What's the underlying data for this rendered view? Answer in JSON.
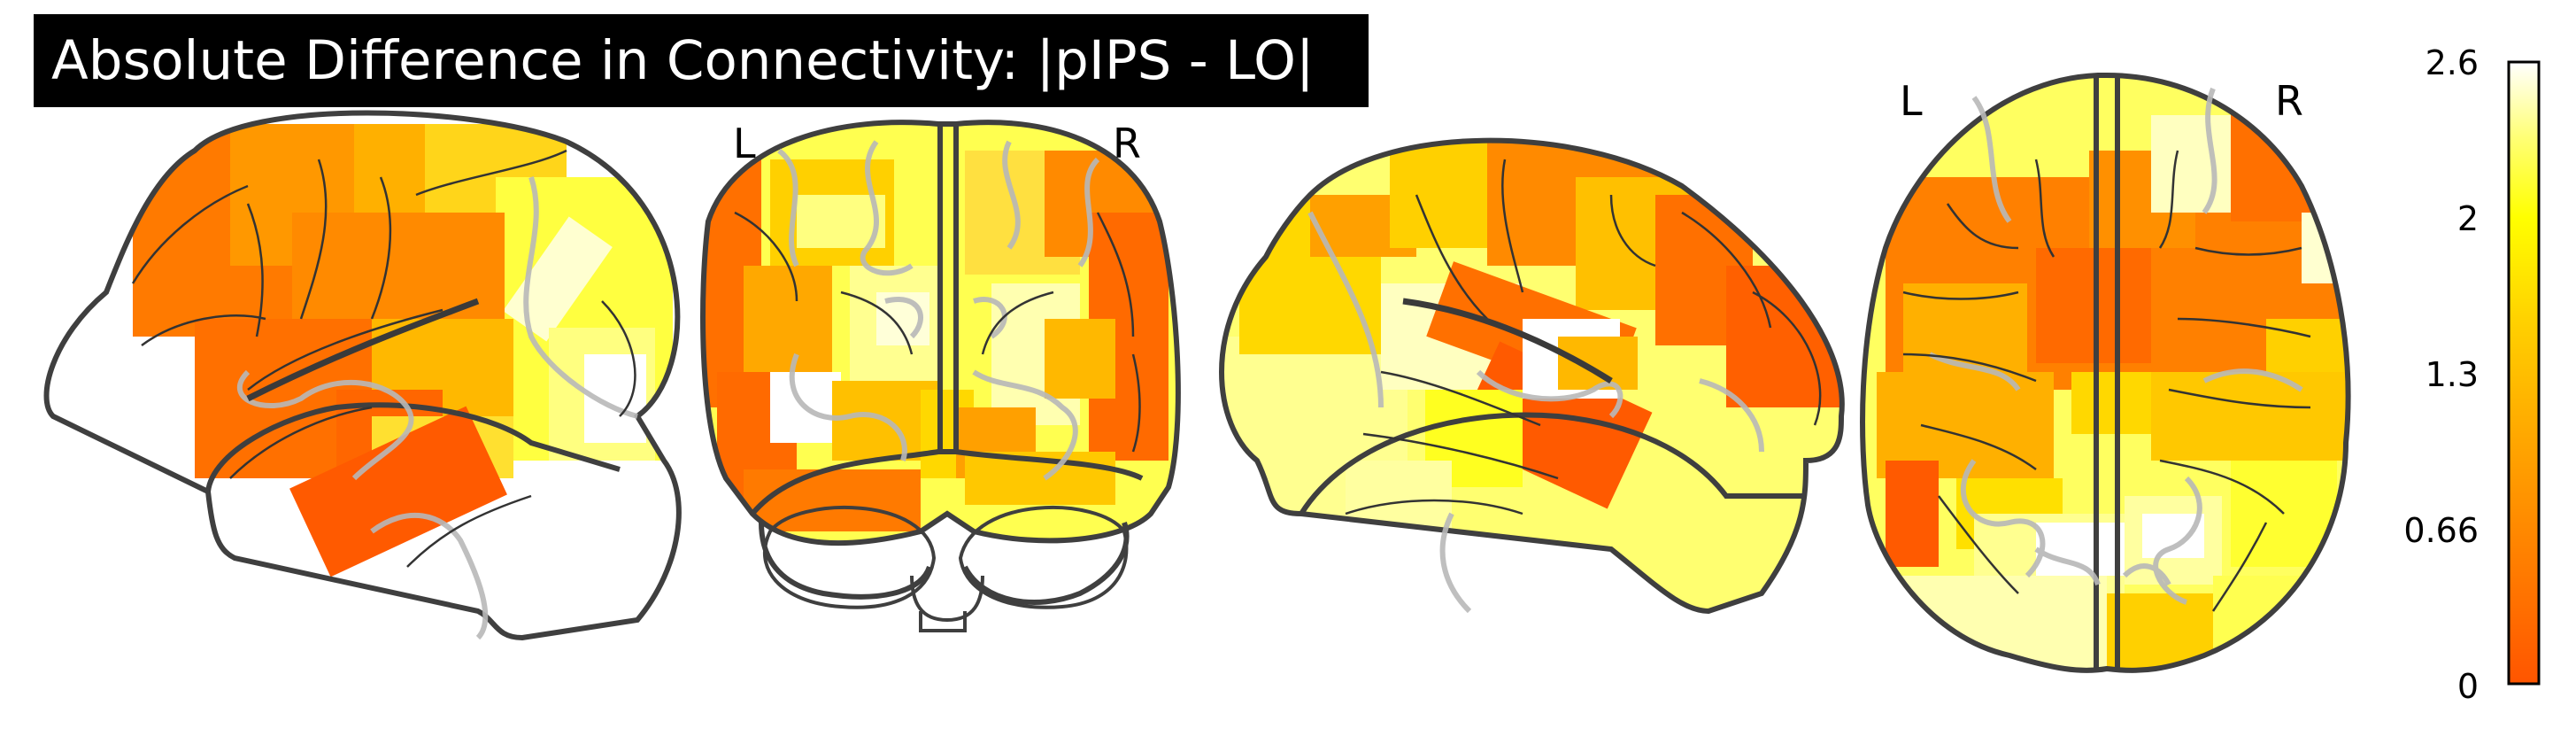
{
  "title": "Absolute Difference in Connectivity: |pIPS - LO|",
  "views": {
    "sagittal_left": {
      "name": "left-sagittal"
    },
    "coronal": {
      "left_label": "L",
      "right_label": "R"
    },
    "sagittal_right": {
      "name": "right-sagittal"
    },
    "axial": {
      "left_label": "L",
      "right_label": "R"
    }
  },
  "colorbar": {
    "ticks": [
      "2.6",
      "2",
      "1.3",
      "0.66",
      "0"
    ],
    "colormap": "hot_r",
    "colors": [
      "#ffffff",
      "#ffff55",
      "#ffff00",
      "#ffd000",
      "#ffa800",
      "#ff7f00",
      "#ff5500"
    ]
  },
  "colors": {
    "outline": "#3f3f3f",
    "inner_outline": "#b8b8b8",
    "sulcus": "#333333"
  }
}
